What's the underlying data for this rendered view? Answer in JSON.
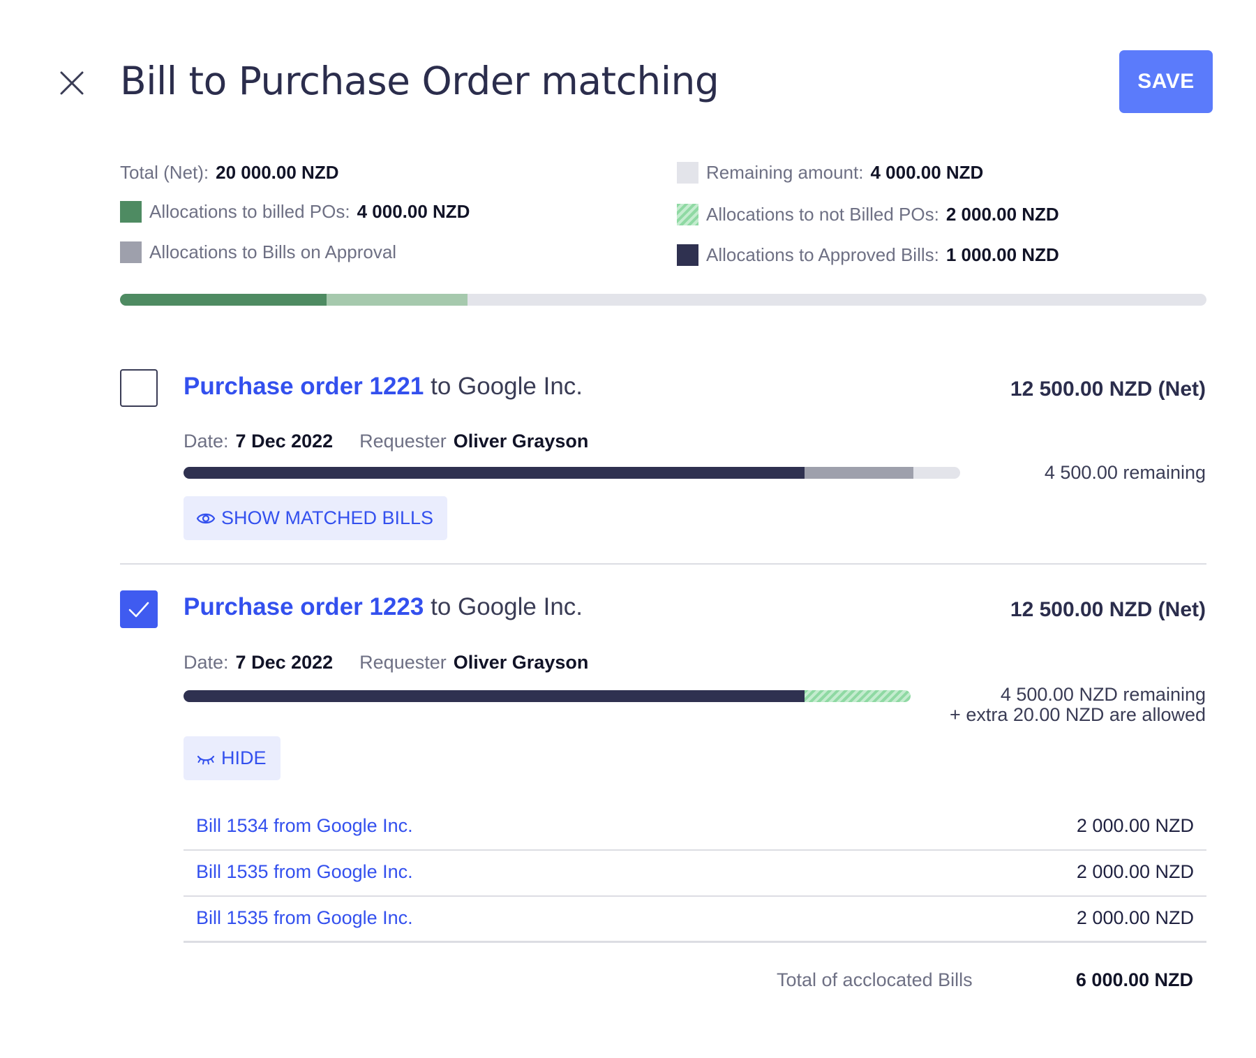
{
  "header": {
    "title": "Bill to Purchase Order matching",
    "save_label": "SAVE"
  },
  "summary": {
    "total_net_label": "Total (Net):",
    "total_net_value": "20 000.00 NZD",
    "remaining_label": "Remaining amount:",
    "remaining_value": "4 000.00 NZD",
    "billed_pos_label": "Allocations to billed POs:",
    "billed_pos_value": "4 000.00 NZD",
    "not_billed_pos_label": "Allocations to not Billed POs:",
    "not_billed_pos_value": "2 000.00 NZD",
    "bills_on_approval_label": "Allocations to Bills on Approval",
    "approved_bills_label": "Allocations to Approved Bills:",
    "approved_bills_value": "1 000.00 NZD",
    "colors": {
      "billed": "#4e8b62",
      "not_billed": "#8fd9a3",
      "approval": "#9ea0ac",
      "approved": "#2f3150",
      "remaining": "#e3e4ea"
    },
    "progress": {
      "billed_fraction": 0.19,
      "not_billed_fraction": 0.13
    }
  },
  "purchase_orders": [
    {
      "checked": false,
      "link_text": "Purchase order 1221",
      "vendor_text": " to Google Inc.",
      "amount": "12 500.00 NZD (Net)",
      "date_label": "Date:",
      "date_value": "7 Dec 2022",
      "requester_label": "Requester",
      "requester_value": "Oliver Grayson",
      "progress": {
        "approved_fraction": 0.8,
        "approval_fraction": 0.14
      },
      "remaining_text": "4 500.00 remaining",
      "toggle_label": "SHOW MATCHED BILLS"
    },
    {
      "checked": true,
      "link_text": "Purchase order 1223",
      "vendor_text": " to Google Inc.",
      "amount": "12 500.00 NZD (Net)",
      "date_label": "Date:",
      "date_value": "7 Dec 2022",
      "requester_label": "Requester",
      "requester_value": "Oliver Grayson",
      "progress": {
        "approved_fraction": 0.854,
        "not_billed_fraction": 0.146
      },
      "remaining_text": "4 500.00 NZD remaining",
      "extra_text": "+ extra 20.00 NZD are allowed",
      "toggle_label": "HIDE",
      "bills": [
        {
          "name": "Bill 1534 from Google Inc.",
          "amount": "2 000.00 NZD"
        },
        {
          "name": "Bill 1535 from Google Inc.",
          "amount": "2 000.00 NZD"
        },
        {
          "name": "Bill 1535 from Google Inc.",
          "amount": "2 000.00 NZD"
        }
      ],
      "bills_total_label": "Total of acclocated Bills",
      "bills_total_value": "6 000.00 NZD"
    }
  ]
}
